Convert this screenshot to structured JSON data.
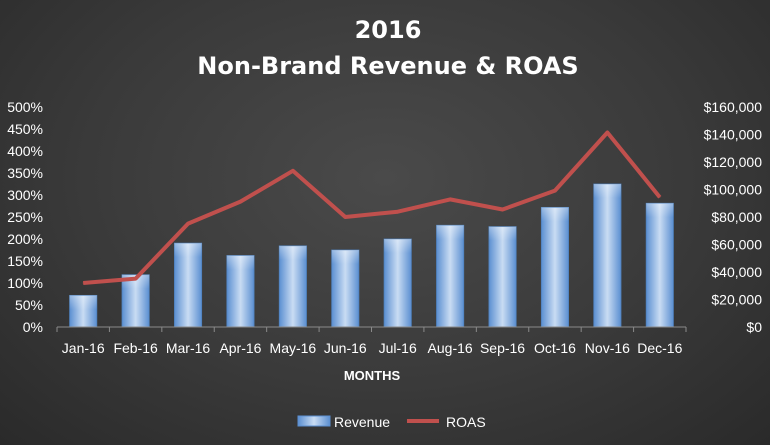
{
  "chart_data": {
    "type": "bar",
    "title": "2016",
    "subtitle": "Non-Brand Revenue & ROAS",
    "xlabel": "MONTHS",
    "categories": [
      "Jan-16",
      "Feb-16",
      "Mar-16",
      "Apr-16",
      "May-16",
      "Jun-16",
      "Jul-16",
      "Aug-16",
      "Sep-16",
      "Oct-16",
      "Nov-16",
      "Dec-16"
    ],
    "series": [
      {
        "name": "Revenue",
        "type": "bar",
        "axis": "right",
        "color": "#8db4e2",
        "values": [
          23000,
          38000,
          61000,
          52000,
          59000,
          56000,
          64000,
          74000,
          73000,
          87000,
          104000,
          90000
        ]
      },
      {
        "name": "ROAS",
        "type": "line",
        "axis": "left",
        "color": "#c0504d",
        "values": [
          1.0,
          1.1,
          2.35,
          2.85,
          3.55,
          2.5,
          2.62,
          2.9,
          2.67,
          3.1,
          4.42,
          2.95
        ]
      }
    ],
    "y_left": {
      "ticks": [
        "0%",
        "50%",
        "100%",
        "150%",
        "200%",
        "250%",
        "300%",
        "350%",
        "400%",
        "450%",
        "500%"
      ],
      "ylim": [
        0,
        5
      ]
    },
    "y_right": {
      "ticks": [
        "$0",
        "$20,000",
        "$40,000",
        "$60,000",
        "$80,000",
        "$100,000",
        "$120,000",
        "$140,000",
        "$160,000"
      ],
      "ylim": [
        0,
        160000
      ]
    },
    "grid": false,
    "legend": {
      "position": "bottom",
      "items": [
        "Revenue",
        "ROAS"
      ]
    }
  }
}
